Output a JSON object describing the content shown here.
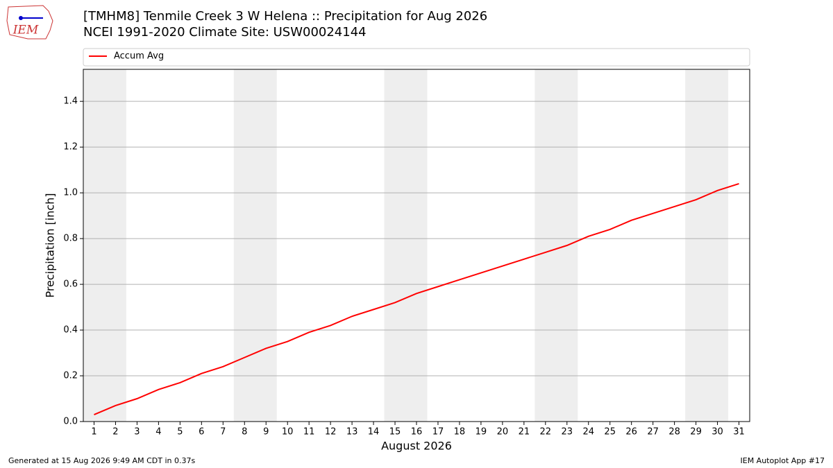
{
  "header": {
    "logo_text": "IEM"
  },
  "chart_data": {
    "type": "line",
    "title": "[TMHM8] Tenmile Creek 3 W Helena :: Precipitation for Aug 2026",
    "subtitle": "NCEI 1991-2020 Climate Site: USW00024144",
    "x_label": "August 2026",
    "y_label": "Precipitation [inch]",
    "x": [
      1,
      2,
      3,
      4,
      5,
      6,
      7,
      8,
      9,
      10,
      11,
      12,
      13,
      14,
      15,
      16,
      17,
      18,
      19,
      20,
      21,
      22,
      23,
      24,
      25,
      26,
      27,
      28,
      29,
      30,
      31
    ],
    "series": [
      {
        "name": "Accum Avg",
        "color": "#ff0000",
        "values": [
          0.03,
          0.07,
          0.1,
          0.14,
          0.17,
          0.21,
          0.24,
          0.28,
          0.32,
          0.35,
          0.39,
          0.42,
          0.46,
          0.49,
          0.52,
          0.56,
          0.59,
          0.62,
          0.65,
          0.68,
          0.71,
          0.74,
          0.77,
          0.81,
          0.84,
          0.88,
          0.91,
          0.94,
          0.97,
          1.01,
          1.04
        ]
      }
    ],
    "xlim": [
      0.5,
      31.5
    ],
    "xticks": [
      1,
      2,
      3,
      4,
      5,
      6,
      7,
      8,
      9,
      10,
      11,
      12,
      13,
      14,
      15,
      16,
      17,
      18,
      19,
      20,
      21,
      22,
      23,
      24,
      25,
      26,
      27,
      28,
      29,
      30,
      31
    ],
    "ylim": [
      0,
      1.54
    ],
    "yticks": [
      {
        "value": 0,
        "label": "0.0"
      },
      0.2,
      0.4,
      0.6,
      0.8,
      {
        "value": 1,
        "label": "1.0"
      },
      1.2,
      1.4
    ],
    "shaded_spans": [
      [
        0.5,
        2.5
      ],
      [
        7.5,
        9.5
      ],
      [
        14.5,
        16.5
      ],
      [
        21.5,
        23.5
      ],
      [
        28.5,
        30.5
      ]
    ],
    "shade_color": "#eeeeee",
    "grid": true,
    "legend": "top"
  },
  "footer": {
    "left": "Generated at 15 Aug 2026 9:49 AM CDT in 0.37s",
    "right": "IEM Autoplot App #17"
  }
}
